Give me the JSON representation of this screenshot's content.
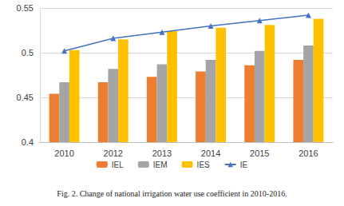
{
  "chart_data": {
    "type": "bar",
    "title": "Fig. 2. Change of national irrigation water use coefficient in 2010-2016.",
    "categories": [
      "2010",
      "2012",
      "2013",
      "2014",
      "2015",
      "2016"
    ],
    "series": [
      {
        "name": "IEL",
        "type": "bar",
        "color": "#ED7D31",
        "values": [
          0.454,
          0.467,
          0.473,
          0.479,
          0.486,
          0.492
        ]
      },
      {
        "name": "IEM",
        "type": "bar",
        "color": "#A5A5A5",
        "values": [
          0.467,
          0.482,
          0.487,
          0.492,
          0.502,
          0.508
        ]
      },
      {
        "name": "IES",
        "type": "bar",
        "color": "#FFC000",
        "values": [
          0.503,
          0.515,
          0.524,
          0.528,
          0.531,
          0.538
        ]
      },
      {
        "name": "IE",
        "type": "line",
        "color": "#4472C4",
        "marker": "triangle",
        "line_style": "solid",
        "values": [
          0.502,
          0.516,
          0.523,
          0.53,
          0.536,
          0.542
        ]
      }
    ],
    "ylim": [
      0.4,
      0.55
    ],
    "yticks": [
      0.4,
      0.45,
      0.5,
      0.55
    ],
    "grid": true,
    "legend": "bottom"
  }
}
